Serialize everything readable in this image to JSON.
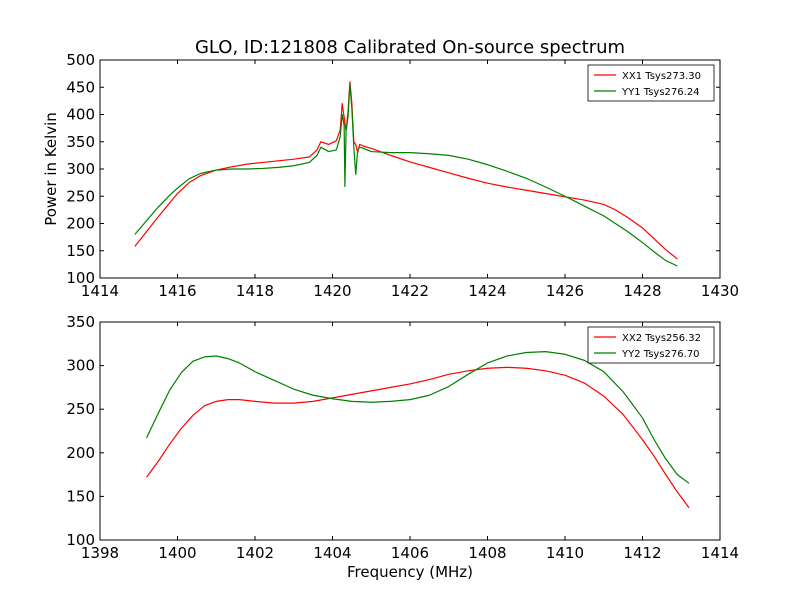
{
  "figure": {
    "title": "GLO, ID:121808 Calibrated On-source spectrum",
    "ylabel": "Power in Kelvin",
    "xlabel": "Frequency (MHz)"
  },
  "chart_data": [
    {
      "type": "line",
      "title": "GLO, ID:121808 Calibrated On-source spectrum",
      "xlabel": "",
      "ylabel": "Power in Kelvin",
      "xlim": [
        1414,
        1430
      ],
      "ylim": [
        100,
        500
      ],
      "xticks": [
        1414,
        1416,
        1418,
        1420,
        1422,
        1424,
        1426,
        1428,
        1430
      ],
      "yticks": [
        100,
        150,
        200,
        250,
        300,
        350,
        400,
        450,
        500
      ],
      "grid": false,
      "legend": "top-right",
      "series": [
        {
          "name": "XX1 Tsys273.30",
          "color": "#ff0000",
          "x": [
            1414.9,
            1415.2,
            1415.5,
            1415.8,
            1416.0,
            1416.3,
            1416.6,
            1417.0,
            1417.4,
            1417.8,
            1418.2,
            1418.6,
            1419.0,
            1419.4,
            1419.6,
            1419.7,
            1419.9,
            1420.1,
            1420.2,
            1420.25,
            1420.3,
            1420.35,
            1420.4,
            1420.45,
            1420.5,
            1420.55,
            1420.6,
            1420.65,
            1420.7,
            1420.8,
            1421.0,
            1421.5,
            1422.0,
            1422.5,
            1423.0,
            1423.5,
            1424.0,
            1424.5,
            1425.0,
            1425.5,
            1426.0,
            1426.5,
            1427.0,
            1427.3,
            1427.6,
            1428.0,
            1428.3,
            1428.6,
            1428.9
          ],
          "y": [
            158,
            185,
            212,
            238,
            255,
            275,
            288,
            298,
            304,
            309,
            312,
            315,
            318,
            322,
            335,
            350,
            345,
            352,
            372,
            420,
            395,
            370,
            405,
            460,
            420,
            350,
            345,
            330,
            345,
            342,
            338,
            325,
            313,
            303,
            293,
            283,
            274,
            267,
            261,
            255,
            249,
            243,
            235,
            225,
            212,
            192,
            172,
            152,
            135
          ]
        },
        {
          "name": "YY1 Tsys276.24",
          "color": "#008000",
          "x": [
            1414.9,
            1415.2,
            1415.5,
            1415.8,
            1416.0,
            1416.3,
            1416.6,
            1417.0,
            1417.4,
            1417.8,
            1418.2,
            1418.6,
            1419.0,
            1419.4,
            1419.6,
            1419.7,
            1419.9,
            1420.1,
            1420.2,
            1420.25,
            1420.3,
            1420.32,
            1420.35,
            1420.4,
            1420.45,
            1420.5,
            1420.55,
            1420.6,
            1420.65,
            1420.7,
            1420.8,
            1421.0,
            1421.5,
            1422.0,
            1422.5,
            1423.0,
            1423.5,
            1424.0,
            1424.5,
            1425.0,
            1425.5,
            1426.0,
            1426.5,
            1427.0,
            1427.3,
            1427.6,
            1428.0,
            1428.3,
            1428.6,
            1428.9
          ],
          "y": [
            180,
            205,
            230,
            252,
            265,
            282,
            292,
            298,
            300,
            300,
            301,
            303,
            306,
            312,
            325,
            340,
            332,
            335,
            360,
            400,
            380,
            268,
            370,
            395,
            455,
            410,
            340,
            290,
            335,
            340,
            338,
            332,
            330,
            330,
            328,
            325,
            318,
            308,
            296,
            283,
            267,
            250,
            232,
            214,
            200,
            186,
            165,
            148,
            132,
            122
          ]
        }
      ]
    },
    {
      "type": "line",
      "title": "",
      "xlabel": "Frequency (MHz)",
      "ylabel": "",
      "xlim": [
        1398,
        1414
      ],
      "ylim": [
        100,
        350
      ],
      "xticks": [
        1398,
        1400,
        1402,
        1404,
        1406,
        1408,
        1410,
        1412,
        1414
      ],
      "yticks": [
        100,
        150,
        200,
        250,
        300,
        350
      ],
      "grid": false,
      "legend": "top-right",
      "series": [
        {
          "name": "XX2 Tsys256.32",
          "color": "#ff0000",
          "x": [
            1399.2,
            1399.5,
            1399.8,
            1400.1,
            1400.4,
            1400.7,
            1401.0,
            1401.3,
            1401.6,
            1402.0,
            1402.5,
            1403.0,
            1403.5,
            1404.0,
            1404.5,
            1405.0,
            1405.5,
            1406.0,
            1406.5,
            1407.0,
            1407.5,
            1408.0,
            1408.5,
            1409.0,
            1409.5,
            1410.0,
            1410.5,
            1411.0,
            1411.5,
            1412.0,
            1412.3,
            1412.6,
            1412.9,
            1413.2
          ],
          "y": [
            172,
            190,
            210,
            228,
            243,
            254,
            259,
            261,
            261,
            259,
            257,
            257,
            259,
            263,
            267,
            271,
            275,
            279,
            284,
            290,
            294,
            297,
            298,
            297,
            294,
            289,
            280,
            265,
            244,
            215,
            196,
            175,
            155,
            137
          ]
        },
        {
          "name": "YY2 Tsys276.70",
          "color": "#008000",
          "x": [
            1399.2,
            1399.5,
            1399.8,
            1400.1,
            1400.4,
            1400.7,
            1401.0,
            1401.3,
            1401.6,
            1402.0,
            1402.5,
            1403.0,
            1403.5,
            1404.0,
            1404.5,
            1405.0,
            1405.5,
            1406.0,
            1406.5,
            1407.0,
            1407.5,
            1408.0,
            1408.5,
            1409.0,
            1409.5,
            1410.0,
            1410.5,
            1411.0,
            1411.5,
            1412.0,
            1412.3,
            1412.6,
            1412.9,
            1413.2
          ],
          "y": [
            217,
            245,
            272,
            292,
            305,
            310,
            311,
            308,
            303,
            293,
            283,
            273,
            266,
            262,
            259,
            258,
            259,
            261,
            266,
            276,
            290,
            303,
            311,
            315,
            316,
            313,
            306,
            293,
            270,
            240,
            215,
            193,
            175,
            165
          ]
        }
      ]
    }
  ]
}
